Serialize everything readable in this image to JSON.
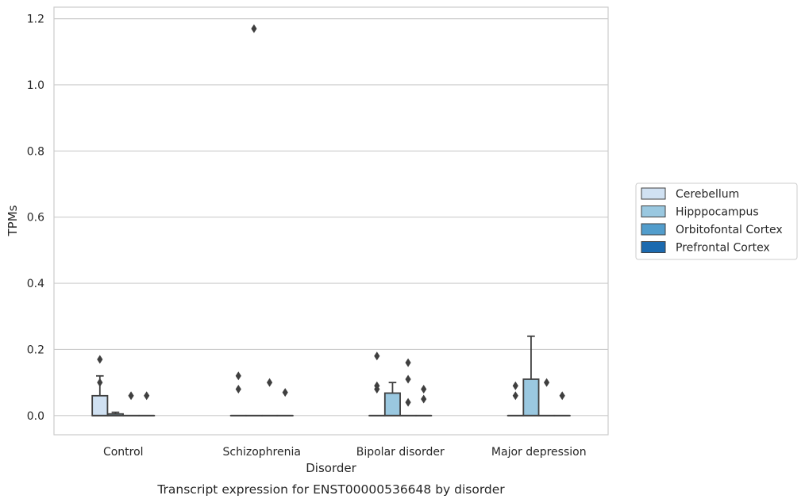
{
  "chart_data": {
    "type": "boxplot",
    "caption": "Transcript expression for ENST00000536648 by disorder",
    "xlabel": "Disorder",
    "ylabel": "TPMs",
    "ylim": [
      -0.058,
      1.235
    ],
    "yticks": [
      0.0,
      0.2,
      0.4,
      0.6,
      0.8,
      1.0,
      1.2
    ],
    "ytick_labels": [
      "0.0",
      "0.2",
      "0.4",
      "0.6",
      "0.8",
      "1.0",
      "1.2"
    ],
    "grid": "horizontal",
    "legend_position": "right",
    "categories": [
      "Control",
      "Schizophrenia",
      "Bipolar disorder",
      "Major depression"
    ],
    "series": [
      {
        "name": "Cerebellum",
        "color": "#d0e1f2",
        "boxes": [
          {
            "q1": 0.0,
            "median": 0.0,
            "q3": 0.06,
            "whisker_low": 0.0,
            "whisker_high": 0.12,
            "outliers": [
              0.17,
              0.1
            ]
          },
          {
            "q1": 0.0,
            "median": 0.0,
            "q3": 0.0,
            "whisker_low": 0.0,
            "whisker_high": 0.0,
            "outliers": [
              0.12,
              0.08
            ]
          },
          {
            "q1": 0.0,
            "median": 0.0,
            "q3": 0.0,
            "whisker_low": 0.0,
            "whisker_high": 0.0,
            "outliers": [
              0.18,
              0.09,
              0.08
            ]
          },
          {
            "q1": 0.0,
            "median": 0.0,
            "q3": 0.0,
            "whisker_low": 0.0,
            "whisker_high": 0.0,
            "outliers": [
              0.09,
              0.06
            ]
          }
        ]
      },
      {
        "name": "Hipppocampus",
        "color": "#9ac8e0",
        "boxes": [
          {
            "q1": 0.0,
            "median": 0.0,
            "q3": 0.005,
            "whisker_low": 0.0,
            "whisker_high": 0.01,
            "outliers": []
          },
          {
            "q1": 0.0,
            "median": 0.0,
            "q3": 0.0,
            "whisker_low": 0.0,
            "whisker_high": 0.0,
            "outliers": [
              1.17
            ]
          },
          {
            "q1": 0.0,
            "median": 0.0,
            "q3": 0.068,
            "whisker_low": 0.0,
            "whisker_high": 0.1,
            "outliers": []
          },
          {
            "q1": 0.0,
            "median": 0.0,
            "q3": 0.11,
            "whisker_low": 0.0,
            "whisker_high": 0.24,
            "outliers": []
          }
        ]
      },
      {
        "name": "Orbitofontal Cortex",
        "color": "#529dcc",
        "boxes": [
          {
            "q1": 0.0,
            "median": 0.0,
            "q3": 0.0,
            "whisker_low": 0.0,
            "whisker_high": 0.0,
            "outliers": [
              0.06
            ]
          },
          {
            "q1": 0.0,
            "median": 0.0,
            "q3": 0.0,
            "whisker_low": 0.0,
            "whisker_high": 0.0,
            "outliers": [
              0.1
            ]
          },
          {
            "q1": 0.0,
            "median": 0.0,
            "q3": 0.0,
            "whisker_low": 0.0,
            "whisker_high": 0.0,
            "outliers": [
              0.16,
              0.11,
              0.04
            ]
          },
          {
            "q1": 0.0,
            "median": 0.0,
            "q3": 0.0,
            "whisker_low": 0.0,
            "whisker_high": 0.0,
            "outliers": [
              0.1
            ]
          }
        ]
      },
      {
        "name": "Prefrontal Cortex",
        "color": "#1c6aaf",
        "boxes": [
          {
            "q1": 0.0,
            "median": 0.0,
            "q3": 0.0,
            "whisker_low": 0.0,
            "whisker_high": 0.0,
            "outliers": [
              0.06
            ]
          },
          {
            "q1": 0.0,
            "median": 0.0,
            "q3": 0.0,
            "whisker_low": 0.0,
            "whisker_high": 0.0,
            "outliers": [
              0.07
            ]
          },
          {
            "q1": 0.0,
            "median": 0.0,
            "q3": 0.0,
            "whisker_low": 0.0,
            "whisker_high": 0.0,
            "outliers": [
              0.08,
              0.05
            ]
          },
          {
            "q1": 0.0,
            "median": 0.0,
            "q3": 0.0,
            "whisker_low": 0.0,
            "whisker_high": 0.0,
            "outliers": [
              0.06
            ]
          }
        ]
      }
    ]
  }
}
